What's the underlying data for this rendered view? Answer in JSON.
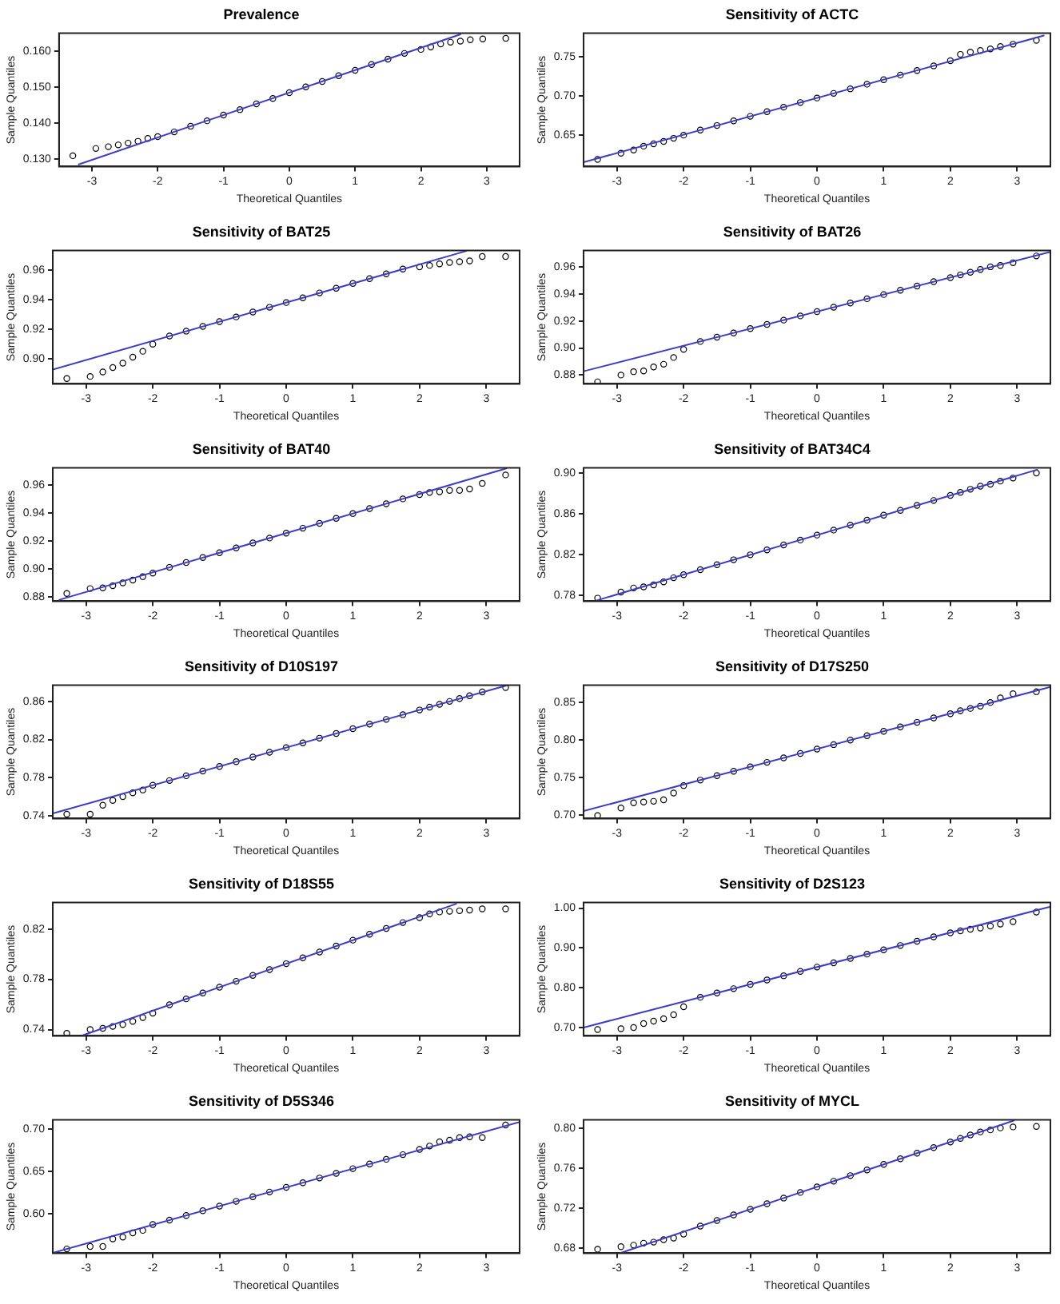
{
  "chart_data": [
    {
      "type": "scatter",
      "title": "Prevalence",
      "xlabel": "Theoretical Quantiles",
      "ylabel": "Sample Quantiles",
      "marker": "circle",
      "xlim": [
        -3.5,
        3.5
      ],
      "xticks": [
        -3,
        -2,
        -1,
        0,
        1,
        2,
        3
      ],
      "ylim": [
        0.128,
        0.165
      ],
      "yticks": [
        {
          "value": 0.13,
          "label": "0.130"
        },
        {
          "value": 0.14,
          "label": "0.140"
        },
        {
          "value": 0.15,
          "label": "0.150"
        },
        {
          "value": 0.16,
          "label": "0.160"
        }
      ],
      "x": [
        -3.29,
        -2.94,
        -2.75,
        -2.6,
        -2.45,
        -2.3,
        -2.15,
        -2,
        -1.75,
        -1.5,
        -1.25,
        -1,
        -0.75,
        -0.5,
        -0.25,
        0,
        0.25,
        0.5,
        0.75,
        1,
        1.25,
        1.5,
        1.75,
        2,
        2.15,
        2.3,
        2.45,
        2.6,
        2.75,
        2.94,
        3.29
      ],
      "series": [
        {
          "color": "#000000",
          "values": [
            0.131,
            0.133,
            0.1335,
            0.134,
            0.1345,
            0.135,
            0.1358,
            0.1363,
            0.1376,
            0.1392,
            0.1407,
            0.1423,
            0.1438,
            0.1454,
            0.1469,
            0.1485,
            0.1501,
            0.1516,
            0.1532,
            0.1547,
            0.1563,
            0.1578,
            0.1594,
            0.1605,
            0.1612,
            0.162,
            0.1625,
            0.1628,
            0.1632,
            0.1634,
            0.1636
          ]
        },
        {
          "type": "line",
          "marker": "none",
          "color": "#3c3cc8",
          "x": [
            -3.2,
            2.6
          ],
          "values": [
            0.1286,
            0.1647
          ]
        }
      ]
    },
    {
      "type": "scatter",
      "title": "Sensitivity of ACTC",
      "xlabel": "Theoretical Quantiles",
      "ylabel": "Sample Quantiles",
      "marker": "circle",
      "xlim": [
        -3.5,
        3.5
      ],
      "xticks": [
        -3,
        -2,
        -1,
        0,
        1,
        2,
        3
      ],
      "ylim": [
        0.61,
        0.78
      ],
      "yticks": [
        0.65,
        {
          "value": 0.7,
          "label": "0.70"
        },
        0.75
      ],
      "x": [
        -3.29,
        -2.94,
        -2.75,
        -2.6,
        -2.45,
        -2.3,
        -2.15,
        -2,
        -1.75,
        -1.5,
        -1.25,
        -1,
        -0.75,
        -0.5,
        -0.25,
        0,
        0.25,
        0.5,
        0.75,
        1,
        1.25,
        1.5,
        1.75,
        2,
        2.15,
        2.3,
        2.45,
        2.6,
        2.75,
        2.94,
        3.29
      ],
      "series": [
        {
          "color": "#000000",
          "values": [
            0.619,
            0.627,
            0.631,
            0.636,
            0.639,
            0.642,
            0.646,
            0.65,
            0.6565,
            0.6623,
            0.6682,
            0.674,
            0.6799,
            0.6857,
            0.6916,
            0.6974,
            0.7033,
            0.7091,
            0.715,
            0.7208,
            0.7267,
            0.7325,
            0.7384,
            0.745,
            0.753,
            0.756,
            0.758,
            0.76,
            0.763,
            0.766,
            0.771
          ]
        },
        {
          "type": "line",
          "marker": "none",
          "color": "#3c3cc8",
          "x": [
            -3.5,
            3.4
          ],
          "values": [
            0.6155,
            0.777
          ]
        }
      ]
    },
    {
      "type": "scatter",
      "title": "Sensitivity of BAT25",
      "xlabel": "Theoretical Quantiles",
      "ylabel": "Sample Quantiles",
      "marker": "circle",
      "xlim": [
        -3.5,
        3.5
      ],
      "xticks": [
        -3,
        -2,
        -1,
        0,
        1,
        2,
        3
      ],
      "ylim": [
        0.883,
        0.973
      ],
      "yticks": [
        {
          "value": 0.9,
          "label": "0.90"
        },
        0.92,
        0.94,
        0.96
      ],
      "x": [
        -3.29,
        -2.94,
        -2.75,
        -2.6,
        -2.45,
        -2.3,
        -2.15,
        -2,
        -1.75,
        -1.5,
        -1.25,
        -1,
        -0.75,
        -0.5,
        -0.25,
        0,
        0.25,
        0.5,
        0.75,
        1,
        1.25,
        1.5,
        1.75,
        2,
        2.15,
        2.3,
        2.45,
        2.6,
        2.75,
        2.94,
        3.29
      ],
      "series": [
        {
          "color": "#000000",
          "values": [
            0.8866,
            0.888,
            0.891,
            0.894,
            0.897,
            0.901,
            0.905,
            0.9098,
            0.9153,
            0.9186,
            0.9218,
            0.925,
            0.9282,
            0.9315,
            0.9347,
            0.9379,
            0.9411,
            0.9444,
            0.9476,
            0.9508,
            0.954,
            0.9573,
            0.9605,
            0.962,
            0.963,
            0.964,
            0.965,
            0.9655,
            0.966,
            0.969,
            0.969
          ]
        },
        {
          "type": "line",
          "marker": "none",
          "color": "#3c3cc8",
          "x": [
            -3.5,
            2.7
          ],
          "values": [
            0.8927,
            0.9727
          ]
        }
      ]
    },
    {
      "type": "scatter",
      "title": "Sensitivity of BAT26",
      "xlabel": "Theoretical Quantiles",
      "ylabel": "Sample Quantiles",
      "marker": "circle",
      "xlim": [
        -3.5,
        3.5
      ],
      "xticks": [
        -3,
        -2,
        -1,
        0,
        1,
        2,
        3
      ],
      "ylim": [
        0.8735,
        0.972
      ],
      "yticks": [
        0.88,
        {
          "value": 0.9,
          "label": "0.90"
        },
        0.92,
        0.94,
        0.96
      ],
      "x": [
        -3.29,
        -2.94,
        -2.75,
        -2.6,
        -2.45,
        -2.3,
        -2.15,
        -2,
        -1.75,
        -1.5,
        -1.25,
        -1,
        -0.75,
        -0.5,
        -0.25,
        0,
        0.25,
        0.5,
        0.75,
        1,
        1.25,
        1.5,
        1.75,
        2,
        2.15,
        2.3,
        2.45,
        2.6,
        2.75,
        2.94,
        3.29
      ],
      "series": [
        {
          "color": "#000000",
          "values": [
            0.875,
            0.88,
            0.8825,
            0.883,
            0.886,
            0.888,
            0.893,
            0.899,
            0.9048,
            0.908,
            0.9111,
            0.9143,
            0.9174,
            0.9206,
            0.9237,
            0.9269,
            0.9301,
            0.9332,
            0.9364,
            0.9395,
            0.9427,
            0.9458,
            0.949,
            0.952,
            0.954,
            0.956,
            0.958,
            0.96,
            0.961,
            0.963,
            0.968
          ]
        },
        {
          "type": "line",
          "marker": "none",
          "color": "#3c3cc8",
          "x": [
            -3.5,
            3.5
          ],
          "values": [
            0.8828,
            0.971
          ]
        }
      ]
    },
    {
      "type": "scatter",
      "title": "Sensitivity of BAT40",
      "xlabel": "Theoretical Quantiles",
      "ylabel": "Sample Quantiles",
      "marker": "circle",
      "xlim": [
        -3.5,
        3.5
      ],
      "xticks": [
        -3,
        -2,
        -1,
        0,
        1,
        2,
        3
      ],
      "ylim": [
        0.877,
        0.972
      ],
      "yticks": [
        0.88,
        {
          "value": 0.9,
          "label": "0.90"
        },
        0.92,
        0.94,
        0.96
      ],
      "x": [
        -3.29,
        -2.94,
        -2.75,
        -2.6,
        -2.45,
        -2.3,
        -2.15,
        -2,
        -1.75,
        -1.5,
        -1.25,
        -1,
        -0.75,
        -0.5,
        -0.25,
        0,
        0.25,
        0.5,
        0.75,
        1,
        1.25,
        1.5,
        1.75,
        2,
        2.15,
        2.3,
        2.45,
        2.6,
        2.75,
        2.94,
        3.29
      ],
      "series": [
        {
          "color": "#000000",
          "values": [
            0.8825,
            0.886,
            0.8865,
            0.888,
            0.89,
            0.892,
            0.8945,
            0.897,
            0.9011,
            0.9046,
            0.9081,
            0.9115,
            0.915,
            0.9185,
            0.922,
            0.9255,
            0.929,
            0.9325,
            0.936,
            0.9395,
            0.943,
            0.9464,
            0.9499,
            0.953,
            0.9545,
            0.955,
            0.956,
            0.956,
            0.957,
            0.961,
            0.967
          ]
        },
        {
          "type": "line",
          "marker": "none",
          "color": "#3c3cc8",
          "x": [
            -3.4,
            3.3
          ],
          "values": [
            0.878,
            0.9716
          ]
        }
      ]
    },
    {
      "type": "scatter",
      "title": "Sensitivity of BAT34C4",
      "xlabel": "Theoretical Quantiles",
      "ylabel": "Sample Quantiles",
      "marker": "circle",
      "xlim": [
        -3.5,
        3.5
      ],
      "xticks": [
        -3,
        -2,
        -1,
        0,
        1,
        2,
        3
      ],
      "ylim": [
        0.774,
        0.905
      ],
      "yticks": [
        0.78,
        0.82,
        0.86,
        {
          "value": 0.9,
          "label": "0.90"
        }
      ],
      "x": [
        -3.29,
        -2.94,
        -2.75,
        -2.6,
        -2.45,
        -2.3,
        -2.15,
        -2,
        -1.75,
        -1.5,
        -1.25,
        -1,
        -0.75,
        -0.5,
        -0.25,
        0,
        0.25,
        0.5,
        0.75,
        1,
        1.25,
        1.5,
        1.75,
        2,
        2.15,
        2.3,
        2.45,
        2.6,
        2.75,
        2.94,
        3.29
      ],
      "series": [
        {
          "color": "#000000",
          "values": [
            0.777,
            0.783,
            0.787,
            0.788,
            0.79,
            0.793,
            0.797,
            0.8,
            0.805,
            0.8098,
            0.8147,
            0.8196,
            0.8244,
            0.8293,
            0.8341,
            0.839,
            0.8439,
            0.8487,
            0.8536,
            0.8585,
            0.8633,
            0.8682,
            0.873,
            0.878,
            0.881,
            0.884,
            0.887,
            0.889,
            0.892,
            0.895,
            0.9
          ]
        },
        {
          "type": "line",
          "marker": "none",
          "color": "#3c3cc8",
          "x": [
            -3.3,
            3.3
          ],
          "values": [
            0.7748,
            0.9032
          ]
        }
      ]
    },
    {
      "type": "scatter",
      "title": "Sensitivity of D10S197",
      "xlabel": "Theoretical Quantiles",
      "ylabel": "Sample Quantiles",
      "marker": "circle",
      "xlim": [
        -3.5,
        3.5
      ],
      "xticks": [
        -3,
        -2,
        -1,
        0,
        1,
        2,
        3
      ],
      "ylim": [
        0.737,
        0.877
      ],
      "yticks": [
        0.74,
        0.78,
        0.82,
        0.86
      ],
      "x": [
        -3.29,
        -2.94,
        -2.75,
        -2.6,
        -2.45,
        -2.3,
        -2.15,
        -2,
        -1.75,
        -1.5,
        -1.25,
        -1,
        -0.75,
        -0.5,
        -0.25,
        0,
        0.25,
        0.5,
        0.75,
        1,
        1.25,
        1.5,
        1.75,
        2,
        2.15,
        2.3,
        2.45,
        2.6,
        2.75,
        2.94,
        3.29
      ],
      "series": [
        {
          "color": "#000000",
          "values": [
            0.7415,
            0.7415,
            0.751,
            0.756,
            0.76,
            0.764,
            0.767,
            0.772,
            0.7769,
            0.7819,
            0.7868,
            0.7917,
            0.7967,
            0.8016,
            0.8066,
            0.8115,
            0.8164,
            0.8214,
            0.8263,
            0.8313,
            0.8362,
            0.8411,
            0.8461,
            0.851,
            0.854,
            0.857,
            0.86,
            0.863,
            0.866,
            0.87,
            0.8745
          ]
        },
        {
          "type": "line",
          "marker": "none",
          "color": "#3c3cc8",
          "x": [
            -3.5,
            3.3
          ],
          "values": [
            0.7423,
            0.8767
          ]
        }
      ]
    },
    {
      "type": "scatter",
      "title": "Sensitivity of D17S250",
      "xlabel": "Theoretical Quantiles",
      "ylabel": "Sample Quantiles",
      "marker": "circle",
      "xlim": [
        -3.5,
        3.5
      ],
      "xticks": [
        -3,
        -2,
        -1,
        0,
        1,
        2,
        3
      ],
      "ylim": [
        0.695,
        0.873
      ],
      "yticks": [
        {
          "value": 0.7,
          "label": "0.70"
        },
        0.75,
        {
          "value": 0.8,
          "label": "0.80"
        },
        0.85
      ],
      "x": [
        -3.29,
        -2.94,
        -2.75,
        -2.6,
        -2.45,
        -2.3,
        -2.15,
        -2,
        -1.75,
        -1.5,
        -1.25,
        -1,
        -0.75,
        -0.5,
        -0.25,
        0,
        0.25,
        0.5,
        0.75,
        1,
        1.25,
        1.5,
        1.75,
        2,
        2.15,
        2.3,
        2.45,
        2.6,
        2.75,
        2.94,
        3.29
      ],
      "series": [
        {
          "color": "#000000",
          "values": [
            0.699,
            0.709,
            0.716,
            0.717,
            0.718,
            0.72,
            0.729,
            0.739,
            0.7463,
            0.7523,
            0.7582,
            0.7641,
            0.77,
            0.776,
            0.7819,
            0.7878,
            0.7937,
            0.7997,
            0.8056,
            0.8115,
            0.8174,
            0.8234,
            0.8293,
            0.835,
            0.839,
            0.842,
            0.845,
            0.85,
            0.856,
            0.8616,
            0.8644
          ]
        },
        {
          "type": "line",
          "marker": "none",
          "color": "#3c3cc8",
          "x": [
            -3.5,
            3.5
          ],
          "values": [
            0.7049,
            0.8708
          ]
        }
      ]
    },
    {
      "type": "scatter",
      "title": "Sensitivity of D18S55",
      "xlabel": "Theoretical Quantiles",
      "ylabel": "Sample Quantiles",
      "marker": "circle",
      "xlim": [
        -3.5,
        3.5
      ],
      "xticks": [
        -3,
        -2,
        -1,
        0,
        1,
        2,
        3
      ],
      "ylim": [
        0.735,
        0.841
      ],
      "yticks": [
        0.74,
        0.78,
        0.82
      ],
      "x": [
        -3.29,
        -2.94,
        -2.75,
        -2.6,
        -2.45,
        -2.3,
        -2.15,
        -2,
        -1.75,
        -1.5,
        -1.25,
        -1,
        -0.75,
        -0.5,
        -0.25,
        0,
        0.25,
        0.5,
        0.75,
        1,
        1.25,
        1.5,
        1.75,
        2,
        2.15,
        2.3,
        2.45,
        2.6,
        2.75,
        2.94,
        3.29
      ],
      "series": [
        {
          "color": "#000000",
          "values": [
            0.737,
            0.74,
            0.741,
            0.7425,
            0.744,
            0.7465,
            0.7495,
            0.753,
            0.7597,
            0.7644,
            0.7691,
            0.7737,
            0.7784,
            0.7831,
            0.7877,
            0.7924,
            0.7971,
            0.8017,
            0.8064,
            0.8111,
            0.8158,
            0.8204,
            0.8251,
            0.829,
            0.832,
            0.8335,
            0.834,
            0.8345,
            0.835,
            0.836,
            0.836
          ]
        },
        {
          "type": "line",
          "marker": "none",
          "color": "#3c3cc8",
          "x": [
            -3.05,
            2.55
          ],
          "values": [
            0.7354,
            0.84
          ]
        }
      ]
    },
    {
      "type": "scatter",
      "title": "Sensitivity of D2S123",
      "xlabel": "Theoretical Quantiles",
      "ylabel": "Sample Quantiles",
      "marker": "circle",
      "xlim": [
        -3.5,
        3.5
      ],
      "xticks": [
        -3,
        -2,
        -1,
        0,
        1,
        2,
        3
      ],
      "ylim": [
        0.679,
        1.014
      ],
      "yticks": [
        {
          "value": 0.7,
          "label": "0.70"
        },
        {
          "value": 0.8,
          "label": "0.80"
        },
        {
          "value": 0.9,
          "label": "0.90"
        },
        {
          "value": 1,
          "label": "1.00"
        }
      ],
      "x": [
        -3.29,
        -2.94,
        -2.75,
        -2.6,
        -2.45,
        -2.3,
        -2.15,
        -2,
        -1.75,
        -1.5,
        -1.25,
        -1,
        -0.75,
        -0.5,
        -0.25,
        0,
        0.25,
        0.5,
        0.75,
        1,
        1.25,
        1.5,
        1.75,
        2,
        2.15,
        2.3,
        2.45,
        2.6,
        2.75,
        2.94,
        3.29
      ],
      "series": [
        {
          "color": "#000000",
          "values": [
            0.695,
            0.697,
            0.7,
            0.71,
            0.716,
            0.722,
            0.732,
            0.752,
            0.7759,
            0.7867,
            0.7976,
            0.8084,
            0.8193,
            0.8301,
            0.841,
            0.8518,
            0.8627,
            0.8735,
            0.8844,
            0.8952,
            0.9061,
            0.9169,
            0.9278,
            0.938,
            0.943,
            0.947,
            0.95,
            0.955,
            0.96,
            0.966,
            0.99
          ]
        },
        {
          "type": "line",
          "marker": "none",
          "color": "#3c3cc8",
          "x": [
            -3.5,
            3.5
          ],
          "values": [
            0.7,
            1.0037
          ]
        }
      ]
    },
    {
      "type": "scatter",
      "title": "Sensitivity of D5S346",
      "xlabel": "Theoretical Quantiles",
      "ylabel": "Sample Quantiles",
      "marker": "circle",
      "xlim": [
        -3.5,
        3.5
      ],
      "xticks": [
        -3,
        -2,
        -1,
        0,
        1,
        2,
        3
      ],
      "ylim": [
        0.553,
        0.711
      ],
      "yticks": [
        {
          "value": 0.6,
          "label": "0.60"
        },
        0.65,
        {
          "value": 0.7,
          "label": "0.70"
        }
      ],
      "x": [
        -3.29,
        -2.94,
        -2.75,
        -2.6,
        -2.45,
        -2.3,
        -2.15,
        -2,
        -1.75,
        -1.5,
        -1.25,
        -1,
        -0.75,
        -0.5,
        -0.25,
        0,
        0.25,
        0.5,
        0.75,
        1,
        1.25,
        1.5,
        1.75,
        2,
        2.15,
        2.3,
        2.45,
        2.6,
        2.75,
        2.94,
        3.29
      ],
      "series": [
        {
          "color": "#000000",
          "values": [
            0.558,
            0.561,
            0.561,
            0.57,
            0.572,
            0.577,
            0.58,
            0.587,
            0.5922,
            0.5977,
            0.6033,
            0.6088,
            0.6144,
            0.6199,
            0.6255,
            0.631,
            0.6365,
            0.6421,
            0.6476,
            0.6532,
            0.6587,
            0.6643,
            0.6698,
            0.676,
            0.68,
            0.685,
            0.687,
            0.69,
            0.691,
            0.69,
            0.705
          ]
        },
        {
          "type": "line",
          "marker": "none",
          "color": "#3c3cc8",
          "x": [
            -3.5,
            3.5
          ],
          "values": [
            0.5534,
            0.7086
          ]
        }
      ]
    },
    {
      "type": "scatter",
      "title": "Sensitivity of MYCL",
      "xlabel": "Theoretical Quantiles",
      "ylabel": "Sample Quantiles",
      "marker": "circle",
      "xlim": [
        -3.5,
        3.5
      ],
      "xticks": [
        -3,
        -2,
        -1,
        0,
        1,
        2,
        3
      ],
      "ylim": [
        0.675,
        0.808
      ],
      "yticks": [
        0.68,
        0.72,
        0.76,
        {
          "value": 0.8,
          "label": "0.80"
        }
      ],
      "x": [
        -3.29,
        -2.94,
        -2.75,
        -2.6,
        -2.45,
        -2.3,
        -2.15,
        -2,
        -1.75,
        -1.5,
        -1.25,
        -1,
        -0.75,
        -0.5,
        -0.25,
        0,
        0.25,
        0.5,
        0.75,
        1,
        1.25,
        1.5,
        1.75,
        2,
        2.15,
        2.3,
        2.45,
        2.6,
        2.75,
        2.94,
        3.29
      ],
      "series": [
        {
          "color": "#000000",
          "values": [
            0.679,
            0.6815,
            0.683,
            0.685,
            0.686,
            0.6885,
            0.69,
            0.694,
            0.702,
            0.7076,
            0.7132,
            0.7188,
            0.7244,
            0.73,
            0.7356,
            0.7412,
            0.7468,
            0.7524,
            0.758,
            0.7636,
            0.7692,
            0.7748,
            0.7804,
            0.786,
            0.7895,
            0.793,
            0.796,
            0.798,
            0.8,
            0.801,
            0.8015
          ]
        },
        {
          "type": "line",
          "marker": "none",
          "color": "#3c3cc8",
          "x": [
            -2.95,
            2.95
          ],
          "values": [
            0.6751,
            0.8073
          ]
        }
      ]
    }
  ]
}
